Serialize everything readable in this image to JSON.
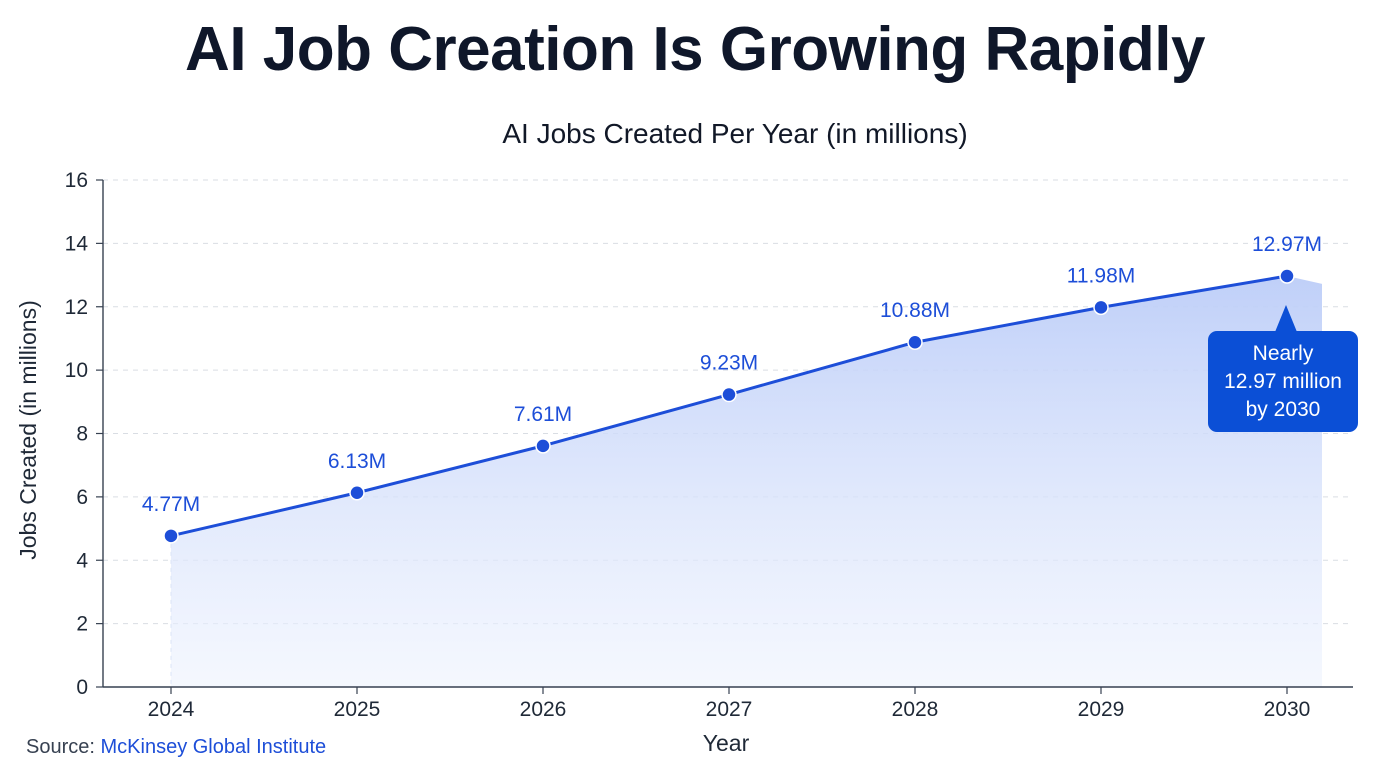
{
  "page": {
    "title": "AI Job Creation Is Growing Rapidly"
  },
  "chart_data": {
    "type": "line",
    "title": "AI Jobs Created Per Year (in millions)",
    "xlabel": "Year",
    "ylabel": "Jobs Created (in millions)",
    "x": [
      "2024",
      "2025",
      "2026",
      "2027",
      "2028",
      "2029",
      "2030"
    ],
    "series": [
      {
        "values": [
          4.77,
          6.13,
          7.61,
          9.23,
          10.88,
          11.98,
          12.97
        ],
        "labels": [
          "4.77M",
          "6.13M",
          "7.61M",
          "9.23M",
          "10.88M",
          "11.98M",
          "12.97M"
        ]
      }
    ],
    "ylim": [
      0,
      16
    ],
    "yticks": [
      "0",
      "2",
      "4",
      "6",
      "8",
      "10",
      "12",
      "14",
      "16"
    ],
    "area_fill": true,
    "grid": "horizontal dashed",
    "colors": {
      "line": "#1d4ed8",
      "marker": "#1d4ed8",
      "fill": "#c7d6fb",
      "callout": "#0b4fd6"
    },
    "annotation": {
      "lines": [
        "Nearly",
        "12.97 million",
        "by 2030"
      ]
    }
  },
  "source": {
    "prefix": "Source:",
    "name": "McKinsey Global Institute"
  }
}
